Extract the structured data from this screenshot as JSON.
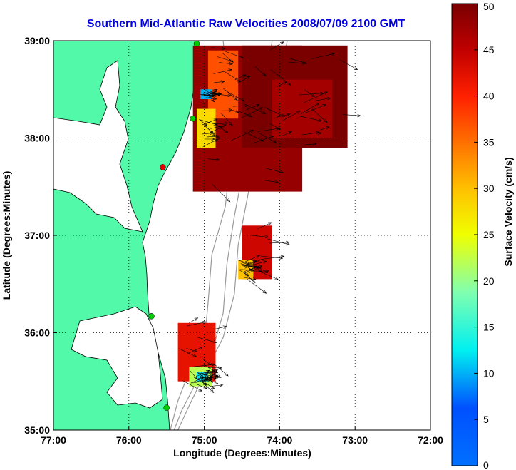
{
  "chart_data": {
    "type": "heatmap",
    "title": "Southern Mid-Atlantic Raw Velocities 2008/07/09 2100 GMT",
    "xlabel": "Longitude (Degrees:Minutes)",
    "ylabel": "Latitude (Degrees:Minutes)",
    "x_ticks": [
      {
        "value": -77,
        "label": "77:00"
      },
      {
        "value": -76,
        "label": "76:00"
      },
      {
        "value": -75,
        "label": "75:00"
      },
      {
        "value": -74,
        "label": "74:00"
      },
      {
        "value": -73,
        "label": "73:00"
      },
      {
        "value": -72,
        "label": "72:00"
      }
    ],
    "y_ticks": [
      {
        "value": 35,
        "label": "35:00"
      },
      {
        "value": 36,
        "label": "36:00"
      },
      {
        "value": 37,
        "label": "37:00"
      },
      {
        "value": 38,
        "label": "38:00"
      },
      {
        "value": 39,
        "label": "39:00"
      }
    ],
    "xlim": [
      -77,
      -72
    ],
    "ylim": [
      35,
      39
    ],
    "grid": true,
    "colorbar": {
      "label": "Surface Velocity (cm/s)",
      "min": 0,
      "max": 50,
      "ticks": [
        0,
        5,
        10,
        15,
        20,
        25,
        30,
        35,
        40,
        45,
        50
      ],
      "colormap": "jet"
    },
    "regions": [
      {
        "lon_range": [
          -75.15,
          -73.7
        ],
        "lat_range": [
          37.45,
          38.95
        ],
        "speed": 48
      },
      {
        "lon_range": [
          -74.5,
          -73.1
        ],
        "lat_range": [
          37.9,
          38.95
        ],
        "speed": 50
      },
      {
        "lon_range": [
          -74.1,
          -73.3
        ],
        "lat_range": [
          38.0,
          38.6
        ],
        "speed": 47
      },
      {
        "lon_range": [
          -74.95,
          -74.55
        ],
        "lat_range": [
          38.2,
          38.9
        ],
        "speed": 37
      },
      {
        "lon_range": [
          -75.1,
          -74.85
        ],
        "lat_range": [
          37.9,
          38.3
        ],
        "speed": 28
      },
      {
        "lon_range": [
          -75.05,
          -74.9
        ],
        "lat_range": [
          38.4,
          38.5
        ],
        "speed": 10
      },
      {
        "lon_range": [
          -74.5,
          -74.1
        ],
        "lat_range": [
          36.55,
          37.1
        ],
        "speed": 44
      },
      {
        "lon_range": [
          -74.55,
          -74.35
        ],
        "lat_range": [
          36.55,
          36.75
        ],
        "speed": 30
      },
      {
        "lon_range": [
          -75.35,
          -74.85
        ],
        "lat_range": [
          35.5,
          36.1
        ],
        "speed": 42
      },
      {
        "lon_range": [
          -75.2,
          -74.9
        ],
        "lat_range": [
          35.45,
          35.65
        ],
        "speed": 22
      },
      {
        "lon_range": [
          -75.1,
          -74.95
        ],
        "lat_range": [
          35.5,
          35.6
        ],
        "speed": 12
      }
    ],
    "vector_field": {
      "direction": "southeastward",
      "description": "raw surface current arrows over colored cells"
    },
    "stations": [
      {
        "lon": -75.1,
        "lat": 38.97,
        "color": "#00cc00"
      },
      {
        "lon": -75.15,
        "lat": 38.2,
        "color": "#00cc00"
      },
      {
        "lon": -75.55,
        "lat": 37.7,
        "color": "#e60000"
      },
      {
        "lon": -75.7,
        "lat": 36.17,
        "color": "#00cc00"
      },
      {
        "lon": -75.5,
        "lat": 35.23,
        "color": "#00cc00"
      }
    ],
    "colors": {
      "land": "#52f9a9",
      "ocean": "#ffffff",
      "bathymetry": "#999999",
      "grid": "#000000"
    }
  }
}
